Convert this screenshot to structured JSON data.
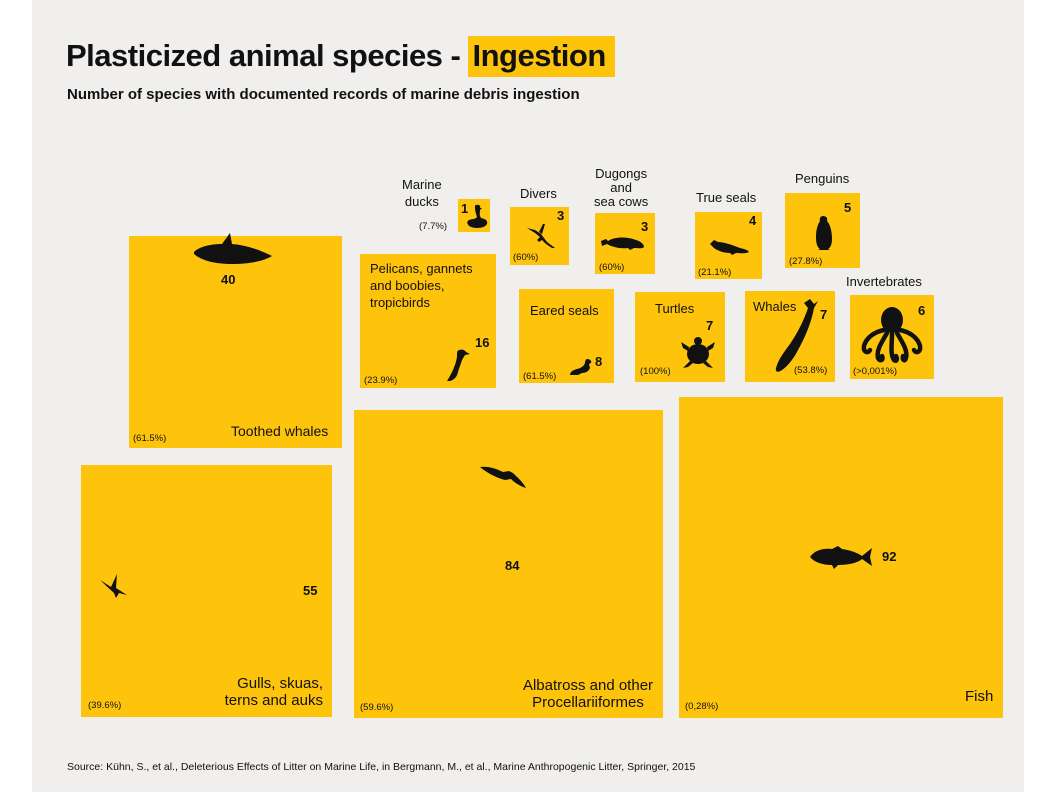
{
  "title": {
    "main": "Plasticized animal species - ",
    "highlight": "Ingestion"
  },
  "subtitle": "Number of species with documented records of marine debris ingestion",
  "source": "Source: Kühn, S., et al., Deleterious Effects of Litter on Marine Life, in Bergmann, M., et al., Marine Anthropogenic Litter, Springer, 2015",
  "colors": {
    "box": "#fec40c",
    "background": "#f0efed",
    "ink": "#111111"
  },
  "chart_data": {
    "type": "treemap",
    "title": "Plasticized animal species - Ingestion",
    "subtitle": "Number of species with documented records of marine debris ingestion",
    "groups": [
      {
        "label": "Marine ducks",
        "value": 1,
        "pct": "(7.7%)",
        "icon": "duck-icon"
      },
      {
        "label": "Divers",
        "value": 3,
        "pct": "(60%)",
        "icon": "diver-bird-icon"
      },
      {
        "label": "Dugongs and sea cows",
        "value": 3,
        "pct": "(60%)",
        "icon": "dugong-icon"
      },
      {
        "label": "True seals",
        "value": 4,
        "pct": "(21.1%)",
        "icon": "seal-icon"
      },
      {
        "label": "Penguins",
        "value": 5,
        "pct": "(27.8%)",
        "icon": "penguin-icon"
      },
      {
        "label": "Pelicans, gannets and boobies, tropicbirds",
        "value": 16,
        "pct": "(23.9%)",
        "icon": "pelican-icon"
      },
      {
        "label": "Eared seals",
        "value": 8,
        "pct": "(61.5%)",
        "icon": "sea-lion-icon"
      },
      {
        "label": "Turtles",
        "value": 7,
        "pct": "(100%)",
        "icon": "turtle-icon"
      },
      {
        "label": "Whales",
        "value": 7,
        "pct": "(53.8%)",
        "icon": "whale-icon"
      },
      {
        "label": "Invertebrates",
        "value": 6,
        "pct": "(>0,001%)",
        "icon": "octopus-icon"
      },
      {
        "label": "Toothed whales",
        "value": 40,
        "pct": "(61.5%)",
        "icon": "orca-icon"
      },
      {
        "label": "Gulls, skuas, terns and auks",
        "value": 55,
        "pct": "(39.6%)",
        "icon": "tern-icon"
      },
      {
        "label": "Albatross and other Procellariiformes",
        "value": 84,
        "pct": "(59.6%)",
        "icon": "albatross-icon"
      },
      {
        "label": "Fish",
        "value": 92,
        "pct": "(0,28%)",
        "icon": "fish-icon"
      }
    ]
  },
  "labels": {
    "marine_ducks": [
      "Marine",
      "ducks"
    ],
    "divers": [
      "Divers"
    ],
    "dugongs": [
      "Dugongs",
      "and",
      "sea cows"
    ],
    "true_seals": [
      "True seals"
    ],
    "penguins": [
      "Penguins"
    ],
    "pelicans": [
      "Pelicans, gannets",
      "and boobies,",
      "tropicbirds"
    ],
    "eared_seals": [
      "Eared seals"
    ],
    "turtles": [
      "Turtles"
    ],
    "whales": [
      "Whales"
    ],
    "invertebrates": [
      "Invertebrates"
    ],
    "toothed_whales": [
      "Toothed whales"
    ],
    "gulls": [
      "Gulls, skuas,",
      "terns and auks"
    ],
    "albatross": [
      "Albatross and other",
      "Procellariiformes"
    ],
    "fish": [
      "Fish"
    ]
  }
}
